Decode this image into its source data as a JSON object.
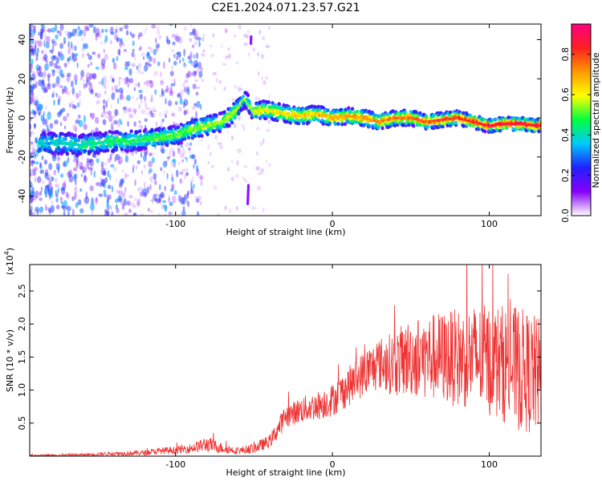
{
  "figure": {
    "title": "C2E1.2024.071.23.57.G21"
  },
  "chart_data": [
    {
      "type": "heatmap",
      "xlabel": "Height of straight line (km)",
      "ylabel": "Frequency (Hz)",
      "xlim": [
        -193,
        133
      ],
      "ylim": [
        -50,
        48
      ],
      "xticks": [
        -100,
        0,
        100
      ],
      "xtick_labels": [
        "-100",
        "0",
        "100"
      ],
      "yticks": [
        -40,
        -20,
        0,
        20,
        40
      ],
      "ytick_labels": [
        "-40",
        "-20",
        "0",
        "20",
        "40"
      ],
      "ridge": {
        "x": [
          -180,
          -170,
          -160,
          -150,
          -140,
          -130,
          -120,
          -110,
          -100,
          -90,
          -80,
          -70,
          -62,
          -56,
          -50,
          -45,
          -40,
          -30,
          -20,
          -10,
          0,
          10,
          20,
          30,
          40,
          50,
          60,
          70,
          80,
          90,
          95,
          100,
          110,
          120,
          130
        ],
        "y": [
          -13,
          -13,
          -14,
          -13,
          -12,
          -12,
          -11,
          -10,
          -9,
          -6,
          -4,
          -2,
          3,
          10,
          3,
          4,
          4,
          2,
          1,
          2,
          0,
          1,
          0,
          -2,
          0,
          0,
          -2,
          -1,
          0,
          -2,
          -3,
          -4,
          -3,
          -3,
          -4
        ]
      },
      "colorbar": {
        "label": "Normalized spectral amplitude",
        "range": [
          0,
          0.95
        ],
        "ticks": [
          0.0,
          0.2,
          0.4,
          0.6,
          0.8
        ],
        "tick_labels": [
          "0.0",
          "0.2",
          "0.4",
          "0.6",
          "0.8"
        ],
        "colors": [
          "#ffffff",
          "#8800ff",
          "#2020ff",
          "#00c8ff",
          "#00ff40",
          "#ffff00",
          "#ff9900",
          "#ff2020",
          "#ff0080"
        ]
      }
    },
    {
      "type": "line",
      "xlabel": "Height of straight line (km)",
      "ylabel": "SNR (10 * v/v)",
      "scale_label": "(x10",
      "scale_exponent": "4",
      "scale_close": ")",
      "xlim": [
        -193,
        133
      ],
      "ylim": [
        0,
        0.29
      ],
      "xticks": [
        -100,
        0,
        100
      ],
      "xtick_labels": [
        "-100",
        "0",
        "100"
      ],
      "yticks": [
        0.05,
        0.1,
        0.15,
        0.2,
        0.25
      ],
      "ytick_labels": [
        "0.5",
        "1.0",
        "1.5",
        "2.0",
        "2.5"
      ],
      "color": "#ee3333",
      "envelope": {
        "x": [
          -193,
          -160,
          -140,
          -120,
          -110,
          -100,
          -90,
          -80,
          -70,
          -60,
          -50,
          -40,
          -35,
          -30,
          -25,
          -20,
          -10,
          0,
          10,
          20,
          30,
          40,
          50,
          60,
          70,
          80,
          90,
          100,
          110,
          120,
          133
        ],
        "mean": [
          0.001,
          0.002,
          0.004,
          0.005,
          0.008,
          0.009,
          0.012,
          0.018,
          0.012,
          0.008,
          0.012,
          0.022,
          0.04,
          0.06,
          0.065,
          0.07,
          0.076,
          0.085,
          0.105,
          0.125,
          0.14,
          0.14,
          0.15,
          0.15,
          0.15,
          0.148,
          0.15,
          0.145,
          0.14,
          0.13,
          0.12
        ],
        "spread": [
          0.001,
          0.002,
          0.003,
          0.004,
          0.005,
          0.006,
          0.007,
          0.012,
          0.008,
          0.005,
          0.008,
          0.01,
          0.015,
          0.018,
          0.018,
          0.02,
          0.022,
          0.025,
          0.03,
          0.035,
          0.04,
          0.05,
          0.06,
          0.065,
          0.07,
          0.075,
          0.08,
          0.085,
          0.09,
          0.095,
          0.09
        ]
      }
    }
  ]
}
